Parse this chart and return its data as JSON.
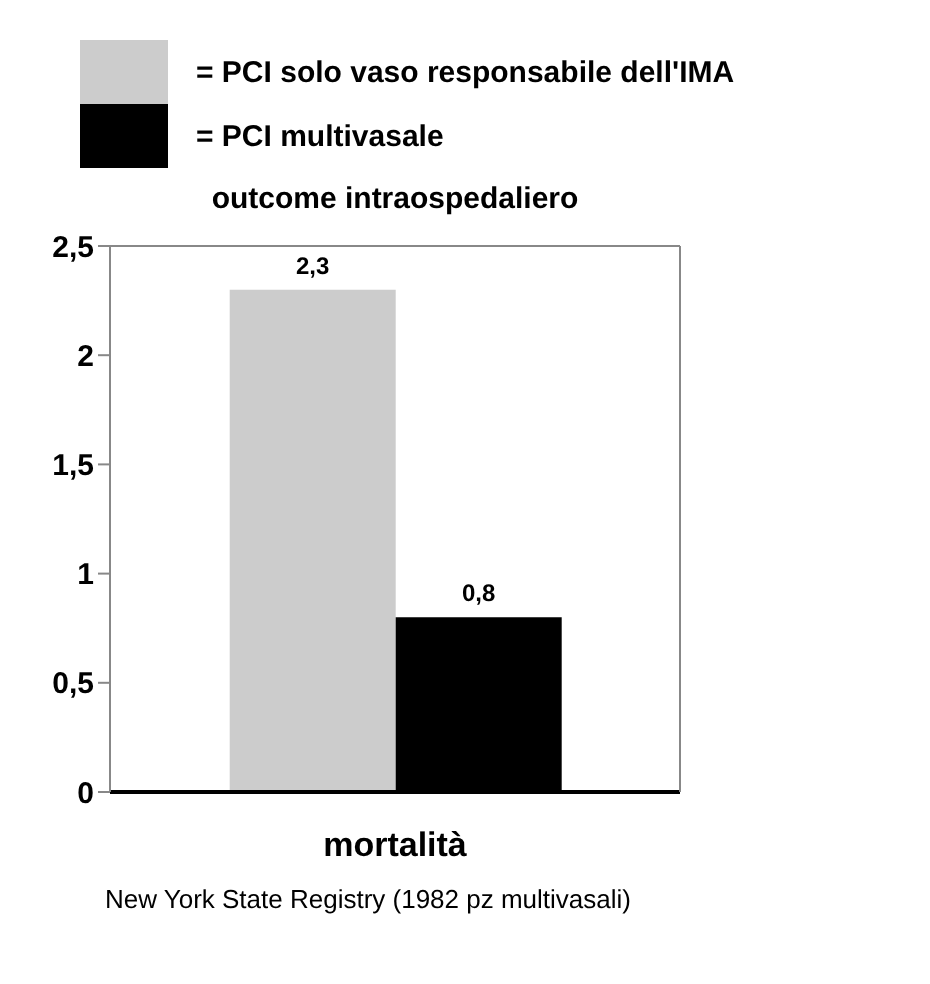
{
  "chart_data": {
    "type": "bar",
    "title": "outcome intraospedaliero",
    "categories": [
      "mortalità"
    ],
    "series": [
      {
        "name": "= PCI solo vaso responsabile dell'IMA",
        "color": "#cccccc",
        "values": [
          2.3
        ],
        "value_labels": [
          "2,3"
        ]
      },
      {
        "name": "= PCI multivasale",
        "color": "#000000",
        "values": [
          0.8
        ],
        "value_labels": [
          "0,8"
        ]
      }
    ],
    "ylim": [
      0,
      2.5
    ],
    "yticks": [
      0,
      {
        "value": 0.5,
        "label": "0,5"
      },
      1,
      {
        "value": 1.5,
        "label": "1,5"
      },
      2,
      {
        "value": 2.5,
        "label": "2,5"
      }
    ],
    "legend": "top",
    "annotations": [
      "New York State Registry (1982 pz multivasali)"
    ]
  }
}
